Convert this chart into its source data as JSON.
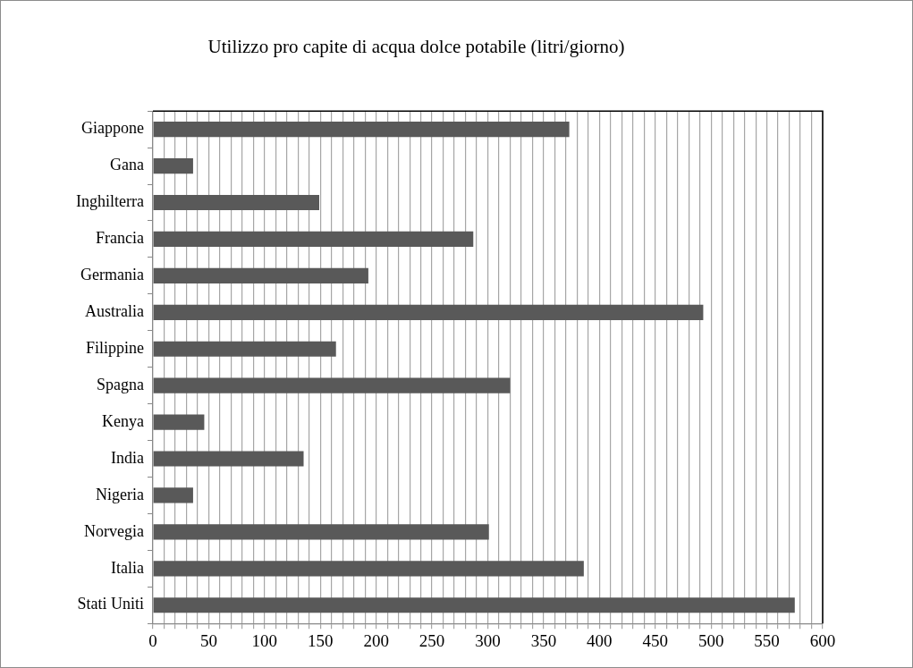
{
  "chart_data": {
    "type": "bar",
    "orientation": "horizontal",
    "title": "Utilizzo pro capite di acqua dolce potabile (litri/giorno)",
    "categories": [
      "Giappone",
      "Gana",
      "Inghilterra",
      "Francia",
      "Germania",
      "Australia",
      "Filippine",
      "Spagna",
      "Kenya",
      "India",
      "Nigeria",
      "Norvegia",
      "Italia",
      "Stati Uniti"
    ],
    "values": [
      373,
      36,
      149,
      287,
      193,
      493,
      164,
      320,
      46,
      135,
      36,
      301,
      386,
      575
    ],
    "color": "#595959",
    "xlim": [
      0,
      600
    ],
    "xticks": [
      0,
      {
        "value": 10,
        "label": null
      },
      {
        "value": 20,
        "label": null
      },
      {
        "value": 30,
        "label": null
      },
      {
        "value": 40,
        "label": null
      },
      50,
      {
        "value": 60,
        "label": null
      },
      {
        "value": 70,
        "label": null
      },
      {
        "value": 80,
        "label": null
      },
      {
        "value": 90,
        "label": null
      },
      100,
      {
        "value": 110,
        "label": null
      },
      {
        "value": 120,
        "label": null
      },
      {
        "value": 130,
        "label": null
      },
      {
        "value": 140,
        "label": null
      },
      150,
      {
        "value": 160,
        "label": null
      },
      {
        "value": 170,
        "label": null
      },
      {
        "value": 180,
        "label": null
      },
      {
        "value": 190,
        "label": null
      },
      200,
      {
        "value": 210,
        "label": null
      },
      {
        "value": 220,
        "label": null
      },
      {
        "value": 230,
        "label": null
      },
      {
        "value": 240,
        "label": null
      },
      250,
      {
        "value": 260,
        "label": null
      },
      {
        "value": 270,
        "label": null
      },
      {
        "value": 280,
        "label": null
      },
      {
        "value": 290,
        "label": null
      },
      300,
      {
        "value": 310,
        "label": null
      },
      {
        "value": 320,
        "label": null
      },
      {
        "value": 330,
        "label": null
      },
      {
        "value": 340,
        "label": null
      },
      350,
      {
        "value": 360,
        "label": null
      },
      {
        "value": 370,
        "label": null
      },
      {
        "value": 380,
        "label": null
      },
      {
        "value": 390,
        "label": null
      },
      400,
      {
        "value": 410,
        "label": null
      },
      {
        "value": 420,
        "label": null
      },
      {
        "value": 430,
        "label": null
      },
      {
        "value": 440,
        "label": null
      },
      450,
      {
        "value": 460,
        "label": null
      },
      {
        "value": 470,
        "label": null
      },
      {
        "value": 480,
        "label": null
      },
      {
        "value": 490,
        "label": null
      },
      500,
      {
        "value": 510,
        "label": null
      },
      {
        "value": 520,
        "label": null
      },
      {
        "value": 530,
        "label": null
      },
      {
        "value": 540,
        "label": null
      },
      550,
      {
        "value": 560,
        "label": null
      },
      {
        "value": 570,
        "label": null
      },
      {
        "value": 580,
        "label": null
      },
      {
        "value": 590,
        "label": null
      },
      600
    ],
    "grid": "x",
    "legend": false
  }
}
